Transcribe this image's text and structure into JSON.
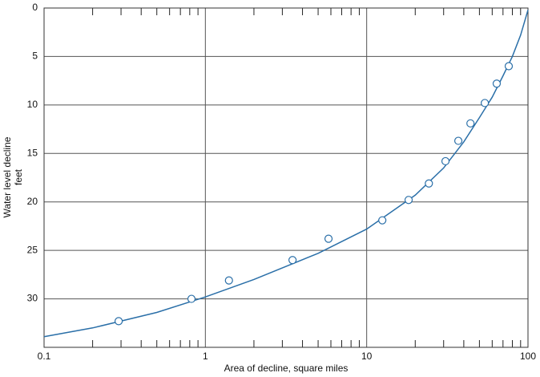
{
  "chart_data": {
    "type": "scatter",
    "xlabel": "Area of decline, square miles",
    "ylabel": [
      "Water level decline",
      "feet"
    ],
    "xscale": "log",
    "xlim": [
      0.1,
      100
    ],
    "xticks": [
      0.1,
      1,
      10,
      100
    ],
    "xminorticks": [
      0.2,
      0.3,
      0.4,
      0.5,
      0.6,
      0.7,
      0.8,
      0.9,
      2,
      3,
      4,
      5,
      6,
      7,
      8,
      9,
      20,
      30,
      40,
      50,
      60,
      70,
      80,
      90
    ],
    "ylim": [
      0,
      35
    ],
    "yinverted": true,
    "yticks": [
      0,
      5,
      10,
      15,
      20,
      25,
      30
    ],
    "grid": true,
    "color": "#2a6fa8",
    "points": {
      "x": [
        0.29,
        0.82,
        1.4,
        3.47,
        5.8,
        12.5,
        18.2,
        24.3,
        30.8,
        37,
        44,
        54,
        64,
        76
      ],
      "y": [
        32.3,
        30.0,
        28.1,
        26.0,
        23.8,
        21.9,
        19.8,
        18.1,
        15.8,
        13.7,
        11.9,
        9.8,
        7.8,
        6.0
      ]
    },
    "curve": {
      "x": [
        0.1,
        0.2,
        0.5,
        1,
        2,
        5,
        10,
        20,
        30,
        40,
        50,
        60,
        70,
        80,
        90,
        100
      ],
      "y": [
        33.9,
        33.0,
        31.4,
        29.8,
        28.0,
        25.3,
        22.8,
        19.3,
        16.5,
        13.8,
        11.3,
        9.2,
        7.0,
        5.0,
        2.8,
        0.2
      ]
    }
  }
}
